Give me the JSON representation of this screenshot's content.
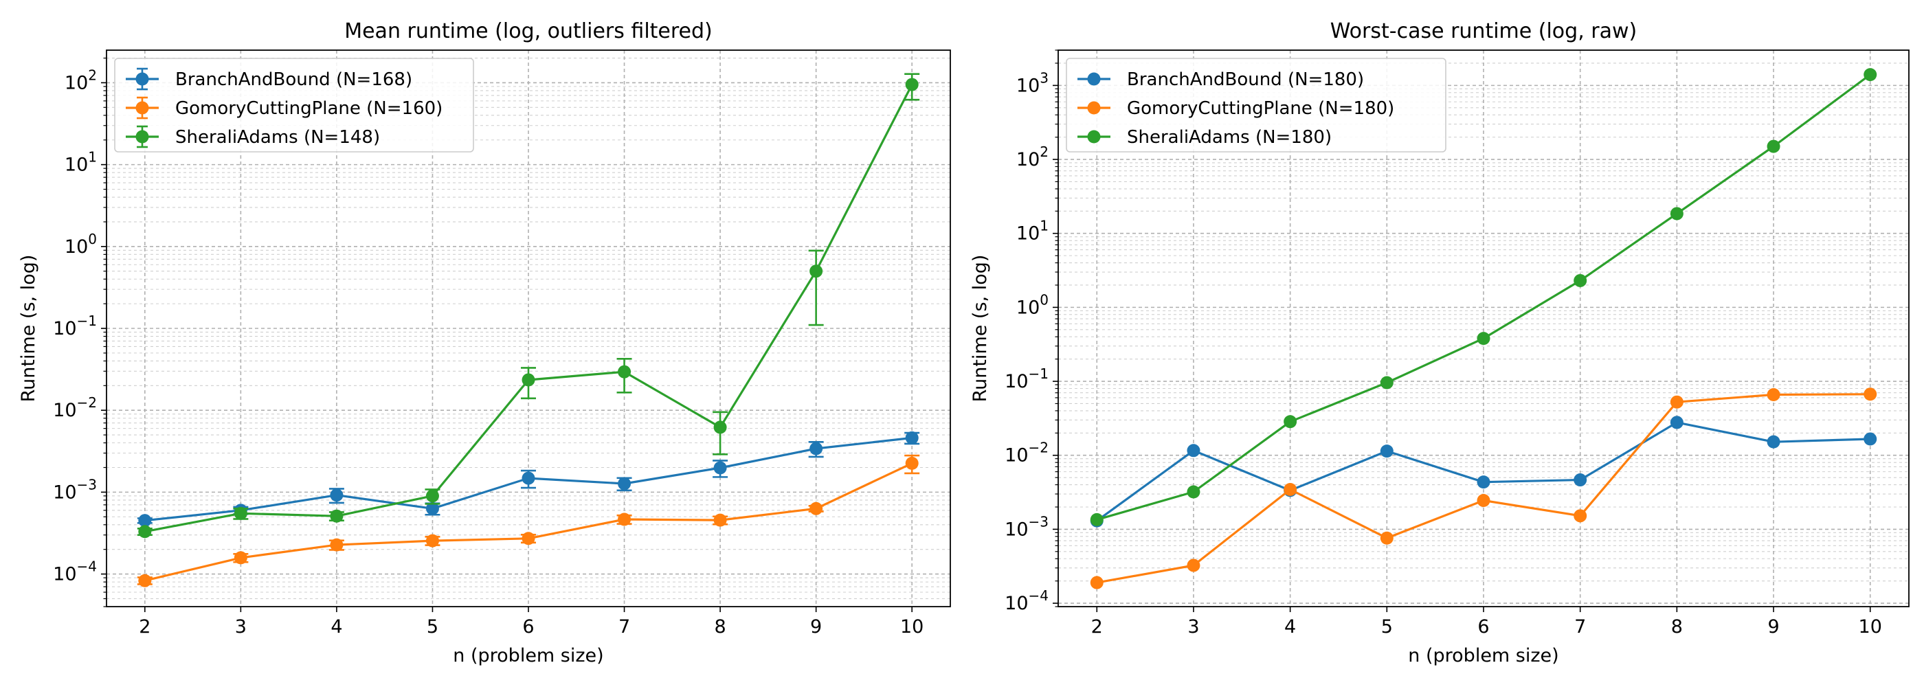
{
  "colors": {
    "BranchAndBound": "#1f77b4",
    "GomoryCuttingPlane": "#ff7f0e",
    "SheraliAdams": "#2ca02c"
  },
  "chart_data": [
    {
      "type": "line",
      "title": "Mean runtime (log, outliers filtered)",
      "xlabel": "n (problem size)",
      "ylabel": "Runtime (s, log)",
      "yscale": "log",
      "ylim": [
        4e-05,
        250
      ],
      "xlim": [
        1.6,
        10.4
      ],
      "x": [
        2,
        3,
        4,
        5,
        6,
        7,
        8,
        9,
        10
      ],
      "grid": "on (major and minor)",
      "legend": "top-left",
      "error_bars": true,
      "series": [
        {
          "name": "BranchAndBound (N=168)",
          "values": [
            0.00045,
            0.0006,
            0.00092,
            0.00063,
            0.00148,
            0.00127,
            0.00198,
            0.0034,
            0.0046
          ],
          "err": [
            3e-05,
            6e-05,
            0.00018,
            0.0001,
            0.00035,
            0.00022,
            0.00045,
            0.0007,
            0.0007
          ]
        },
        {
          "name": "GomoryCuttingPlane (N=160)",
          "values": [
            8.3e-05,
            0.000158,
            0.000227,
            0.000255,
            0.000272,
            0.000465,
            0.000455,
            0.00063,
            0.00225
          ],
          "err": [
            8e-06,
            1.8e-05,
            3e-05,
            3e-05,
            3e-05,
            5.5e-05,
            5e-05,
            5e-05,
            0.00055
          ]
        },
        {
          "name": "SheraliAdams (N=148)",
          "values": [
            0.00033,
            0.00055,
            0.00051,
            0.0009,
            0.0235,
            0.0295,
            0.0062,
            0.5,
            95
          ],
          "err": [
            3e-05,
            8e-05,
            6e-05,
            0.00018,
            0.0095,
            0.013,
            0.0033,
            0.39,
            33
          ]
        }
      ]
    },
    {
      "type": "line",
      "title": "Worst-case runtime (log, raw)",
      "xlabel": "n (problem size)",
      "ylabel": "Runtime (s, log)",
      "yscale": "log",
      "ylim": [
        9e-05,
        3000
      ],
      "xlim": [
        1.6,
        10.4
      ],
      "x": [
        2,
        3,
        4,
        5,
        6,
        7,
        8,
        9,
        10
      ],
      "grid": "on (major and minor)",
      "legend": "top-left",
      "error_bars": false,
      "series": [
        {
          "name": "BranchAndBound (N=180)",
          "values": [
            0.0013,
            0.0116,
            0.00335,
            0.0114,
            0.00435,
            0.00465,
            0.0278,
            0.0152,
            0.0166
          ]
        },
        {
          "name": "GomoryCuttingPlane (N=180)",
          "values": [
            0.00019,
            0.000325,
            0.00345,
            0.00076,
            0.00245,
            0.00152,
            0.0525,
            0.066,
            0.067
          ]
        },
        {
          "name": "SheraliAdams (N=180)",
          "values": [
            0.00135,
            0.0032,
            0.0285,
            0.096,
            0.38,
            2.3,
            18.5,
            150,
            1400
          ]
        }
      ]
    }
  ]
}
